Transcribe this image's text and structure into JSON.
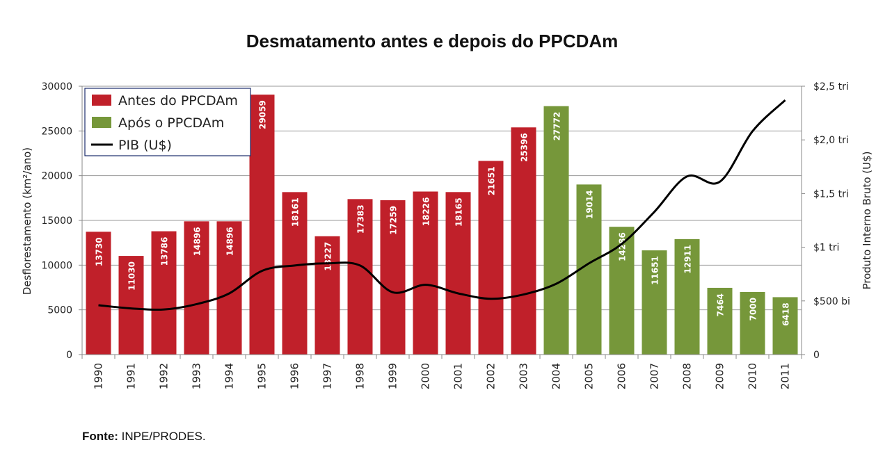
{
  "title": "Desmatamento antes e depois do PPCDAm",
  "source_label": "Fonte:",
  "source_text": "INPE/PRODES.",
  "colors": {
    "before": "#c0202a",
    "after": "#76973a",
    "line": "#000000",
    "grid": "#9a9a9a"
  },
  "chart_data": {
    "type": "bar",
    "title": "Desmatamento antes e depois do PPCDAm",
    "categories": [
      "1990",
      "1991",
      "1992",
      "1993",
      "1994",
      "1995",
      "1996",
      "1997",
      "1998",
      "1999",
      "2000",
      "2001",
      "2002",
      "2003",
      "2004",
      "2005",
      "2006",
      "2007",
      "2008",
      "2009",
      "2010",
      "2011"
    ],
    "series": [
      {
        "name": "Antes do PPCDAm",
        "type": "bar",
        "values": [
          13730,
          11030,
          13786,
          14896,
          14896,
          29059,
          18161,
          13227,
          17383,
          17259,
          18226,
          18165,
          21651,
          25396,
          null,
          null,
          null,
          null,
          null,
          null,
          null,
          null
        ]
      },
      {
        "name": "Após o PPCDAm",
        "type": "bar",
        "values": [
          null,
          null,
          null,
          null,
          null,
          null,
          null,
          null,
          null,
          null,
          null,
          null,
          null,
          null,
          27772,
          19014,
          14286,
          11651,
          12911,
          7464,
          7000,
          6418
        ]
      },
      {
        "name": "PIB (U$)",
        "type": "line",
        "axis": "right",
        "unit": "US$ bi",
        "values": [
          460,
          430,
          420,
          470,
          570,
          780,
          830,
          850,
          830,
          580,
          650,
          570,
          520,
          560,
          660,
          850,
          1030,
          1330,
          1660,
          1610,
          2080,
          2370
        ]
      }
    ],
    "ylabel_left": "Desflorestamento (km²/ano)",
    "ylabel_right": "Produto Interno Bruto (U$)",
    "ylim_left": [
      0,
      30000
    ],
    "yticks_left": [
      "0",
      "5000",
      "10000",
      "15000",
      "20000",
      "25000",
      "30000"
    ],
    "ylim_right": [
      0,
      2500
    ],
    "yticks_right": [
      {
        "value": 0,
        "label": "0"
      },
      {
        "value": 500,
        "label": "$500 bi"
      },
      {
        "value": 1000,
        "label": "$1 tri"
      },
      {
        "value": 1500,
        "label": "$1,5 tri"
      },
      {
        "value": 2000,
        "label": "$2,0 tri"
      },
      {
        "value": 2500,
        "label": "$2,5 tri"
      }
    ],
    "legend": [
      "Antes do PPCDAm",
      "Após o PPCDAm",
      "PIB (U$)"
    ],
    "legend_position": "top-left",
    "grid": true
  }
}
